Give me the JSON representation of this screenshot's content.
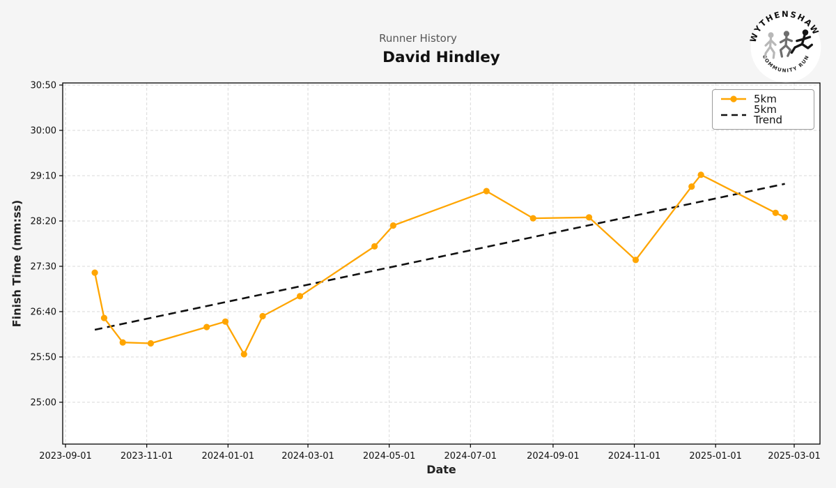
{
  "header": {
    "subtitle": "Runner History",
    "title": "David Hindley"
  },
  "logo": {
    "top_text": "WYTHENSHAWE",
    "bottom_text": "COMMUNITY RUN"
  },
  "chart_data": {
    "type": "line",
    "title": "Runner History",
    "subtitle": "David Hindley",
    "xlabel": "Date",
    "ylabel": "Finish Time (mm:ss)",
    "grid": true,
    "background_color": "#f5f5f5",
    "plot_background_color": "#ffffff",
    "grid_color": "#d9d9d9",
    "x_ticks": [
      "2023-09-01",
      "2023-11-01",
      "2024-01-01",
      "2024-03-01",
      "2024-05-01",
      "2024-07-01",
      "2024-09-01",
      "2024-11-01",
      "2025-01-01",
      "2025-03-01"
    ],
    "y_ticks": [
      "30:50",
      "30:00",
      "29:10",
      "28:20",
      "27:30",
      "26:40",
      "25:50",
      "25:00"
    ],
    "x_range": [
      "2023-08-30",
      "2025-03-20"
    ],
    "y_range": [
      "24:14",
      "30:52"
    ],
    "legend": {
      "position": "top-right",
      "entries": [
        "5km",
        "5km Trend"
      ]
    },
    "series": [
      {
        "name": "5km",
        "color": "#FFA500",
        "style": "solid-markers",
        "points": [
          {
            "date": "2023-09-23",
            "time": "27:23"
          },
          {
            "date": "2023-09-30",
            "time": "26:33"
          },
          {
            "date": "2023-10-14",
            "time": "26:06"
          },
          {
            "date": "2023-11-04",
            "time": "26:05"
          },
          {
            "date": "2023-12-16",
            "time": "26:23"
          },
          {
            "date": "2023-12-30",
            "time": "26:29"
          },
          {
            "date": "2024-01-13",
            "time": "25:53"
          },
          {
            "date": "2024-01-27",
            "time": "26:35"
          },
          {
            "date": "2024-02-24",
            "time": "26:57"
          },
          {
            "date": "2024-04-20",
            "time": "27:52"
          },
          {
            "date": "2024-05-04",
            "time": "28:15"
          },
          {
            "date": "2024-07-13",
            "time": "28:53"
          },
          {
            "date": "2024-08-17",
            "time": "28:23"
          },
          {
            "date": "2024-09-28",
            "time": "28:24"
          },
          {
            "date": "2024-11-02",
            "time": "27:37"
          },
          {
            "date": "2024-12-14",
            "time": "28:58"
          },
          {
            "date": "2024-12-21",
            "time": "29:11"
          },
          {
            "date": "2025-02-15",
            "time": "28:29"
          },
          {
            "date": "2025-02-22",
            "time": "28:24"
          }
        ]
      },
      {
        "name": "5km Trend",
        "color": "#111111",
        "style": "dashed",
        "points": [
          {
            "date": "2023-09-23",
            "time": "26:20"
          },
          {
            "date": "2025-02-22",
            "time": "29:01"
          }
        ]
      }
    ]
  }
}
